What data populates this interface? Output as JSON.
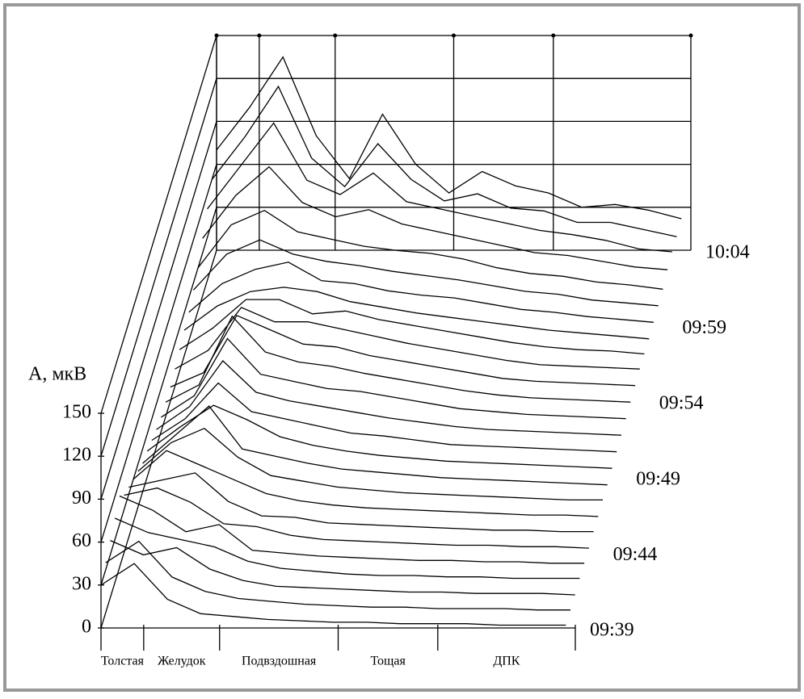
{
  "chart_data": {
    "type": "waterfall",
    "ylabel": "A, мкВ",
    "color": "#000000",
    "ylim": [
      0,
      150
    ],
    "yticks": [
      0,
      30,
      60,
      90,
      120,
      150
    ],
    "xlim": [
      0,
      100
    ],
    "xticks": [
      0,
      9,
      25,
      50,
      71,
      100
    ],
    "segments": [
      "Толстая",
      "Желудок",
      "Подвздошная",
      "Тощая",
      "ДПК"
    ],
    "rows": [
      "09:39",
      null,
      null,
      null,
      null,
      "09:44",
      null,
      null,
      null,
      null,
      "09:49",
      null,
      null,
      null,
      null,
      "09:54",
      null,
      null,
      null,
      null,
      "09:59",
      null,
      null,
      null,
      null,
      "10:04"
    ],
    "x": [
      0,
      7,
      14,
      21,
      28,
      35,
      42,
      49,
      56,
      63,
      70,
      77,
      84,
      91,
      98
    ],
    "series": [
      {
        "values": [
          30,
          45,
          20,
          10,
          8,
          6,
          5,
          4,
          4,
          3,
          3,
          3,
          2,
          2,
          2
        ]
      },
      {
        "values": [
          35,
          50,
          25,
          15,
          10,
          8,
          6,
          5,
          4,
          4,
          3,
          3,
          3,
          2,
          2
        ]
      },
      {
        "values": [
          40,
          30,
          35,
          20,
          12,
          8,
          7,
          6,
          5,
          4,
          4,
          3,
          3,
          3,
          2
        ]
      },
      {
        "values": [
          45,
          35,
          30,
          25,
          15,
          10,
          8,
          6,
          5,
          5,
          4,
          4,
          3,
          3,
          3
        ]
      },
      {
        "values": [
          50,
          40,
          25,
          30,
          12,
          10,
          8,
          7,
          6,
          5,
          5,
          4,
          4,
          3,
          3
        ]
      },
      {
        "values": [
          40,
          45,
          35,
          20,
          18,
          12,
          9,
          8,
          7,
          6,
          5,
          5,
          4,
          4,
          3
        ]
      },
      {
        "values": [
          35,
          40,
          45,
          25,
          15,
          14,
          10,
          9,
          8,
          7,
          6,
          5,
          5,
          4,
          4
        ]
      },
      {
        "values": [
          30,
          50,
          40,
          30,
          20,
          15,
          12,
          10,
          9,
          8,
          7,
          6,
          5,
          5,
          4
        ]
      },
      {
        "values": [
          25,
          45,
          55,
          35,
          22,
          18,
          14,
          12,
          10,
          9,
          8,
          7,
          6,
          5,
          5
        ]
      },
      {
        "values": [
          20,
          40,
          60,
          30,
          25,
          20,
          16,
          14,
          12,
          10,
          9,
          8,
          7,
          6,
          5
        ]
      },
      {
        "values": [
          18,
          35,
          50,
          40,
          28,
          22,
          18,
          15,
          13,
          11,
          10,
          9,
          8,
          7,
          6
        ]
      },
      {
        "values": [
          15,
          30,
          55,
          35,
          30,
          25,
          20,
          18,
          15,
          12,
          11,
          10,
          9,
          8,
          7
        ]
      },
      {
        "values": [
          12,
          28,
          60,
          38,
          32,
          28,
          24,
          20,
          17,
          14,
          12,
          11,
          10,
          9,
          8
        ]
      },
      {
        "values": [
          10,
          25,
          65,
          40,
          35,
          30,
          28,
          24,
          20,
          16,
          14,
          12,
          11,
          10,
          9
        ]
      },
      {
        "values": [
          10,
          22,
          70,
          45,
          38,
          35,
          30,
          26,
          22,
          18,
          15,
          13,
          12,
          11,
          10
        ]
      },
      {
        "values": [
          10,
          20,
          60,
          50,
          40,
          38,
          32,
          28,
          24,
          20,
          16,
          14,
          13,
          12,
          11
        ]
      },
      {
        "values": [
          12,
          25,
          55,
          45,
          45,
          40,
          35,
          30,
          26,
          22,
          18,
          15,
          14,
          13,
          12
        ]
      },
      {
        "values": [
          15,
          30,
          50,
          50,
          40,
          42,
          36,
          32,
          28,
          24,
          20,
          17,
          15,
          14,
          12
        ]
      },
      {
        "values": [
          18,
          35,
          45,
          48,
          45,
          38,
          34,
          30,
          27,
          24,
          21,
          18,
          16,
          14,
          12
        ]
      },
      {
        "values": [
          20,
          40,
          50,
          55,
          42,
          40,
          35,
          32,
          30,
          26,
          22,
          20,
          17,
          15,
          13
        ]
      },
      {
        "values": [
          25,
          50,
          60,
          50,
          45,
          42,
          38,
          35,
          32,
          28,
          24,
          22,
          18,
          16,
          14
        ]
      },
      {
        "values": [
          30,
          60,
          70,
          55,
          50,
          45,
          42,
          40,
          36,
          30,
          26,
          24,
          20,
          18,
          15
        ]
      },
      {
        "values": [
          40,
          70,
          90,
          65,
          55,
          60,
          50,
          45,
          40,
          35,
          30,
          28,
          24,
          20,
          18
        ]
      },
      {
        "values": [
          50,
          80,
          110,
          70,
          60,
          75,
          55,
          50,
          45,
          40,
          35,
          32,
          28,
          22,
          20
        ]
      },
      {
        "values": [
          60,
          90,
          125,
          75,
          55,
          85,
          60,
          45,
          50,
          40,
          38,
          30,
          30,
          25,
          20
        ]
      },
      {
        "values": [
          70,
          100,
          135,
          80,
          50,
          95,
          60,
          40,
          55,
          45,
          40,
          30,
          32,
          28,
          22
        ]
      }
    ]
  }
}
